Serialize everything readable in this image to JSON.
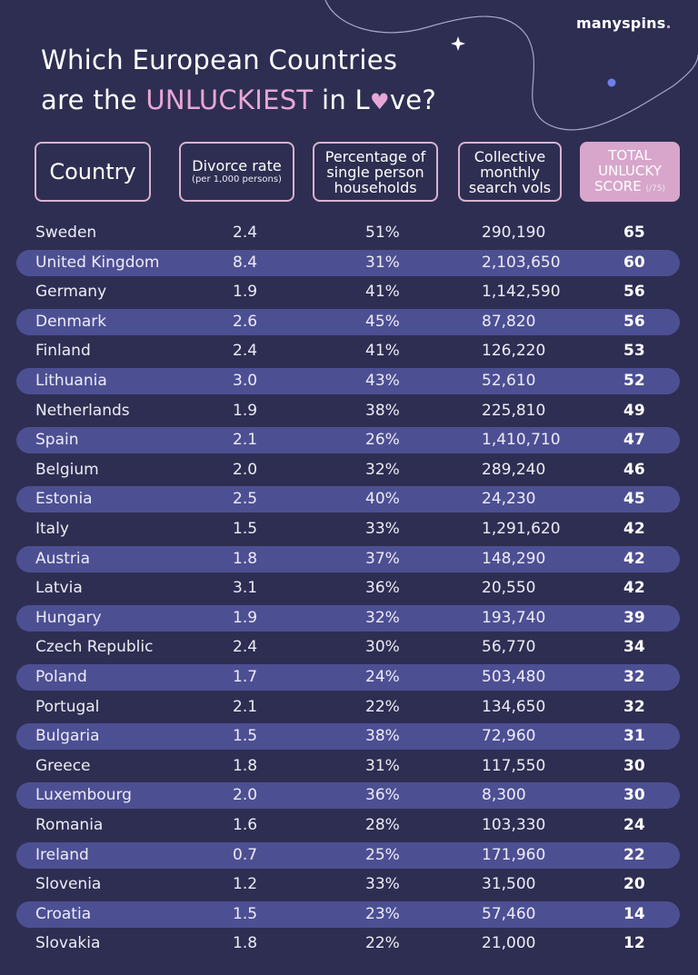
{
  "brand": {
    "name": "manyspins",
    "dot": "."
  },
  "title": {
    "line1": "Which European Countries",
    "line2_pre": "are the ",
    "line2_highlight": "UNLUCKIEST",
    "line2_mid": " in L",
    "heart": "♥",
    "line2_post": "ve?"
  },
  "headers": {
    "country": "Country",
    "divorce_main": "Divorce rate",
    "divorce_sub": "(per 1,000 persons)",
    "single_line1": "Percentage of",
    "single_line2": "single person",
    "single_line3": "households",
    "search_line1": "Collective",
    "search_line2": "monthly",
    "search_line3": "search vols",
    "total_line1": "TOTAL",
    "total_line2": "UNLUCKY",
    "total_line3": "SCORE",
    "total_sub": "(/75)"
  },
  "colors": {
    "background": "#2e2e52",
    "band": "#4d4f93",
    "accent_pink": "#d8a6cb",
    "deco_dot": "#6f7ee8"
  },
  "chart_data": {
    "type": "table",
    "columns": [
      "Country",
      "Divorce rate (per 1,000 persons)",
      "Percentage of single person households",
      "Collective monthly search vols",
      "TOTAL UNLUCKY SCORE (/75)"
    ],
    "rows": [
      {
        "country": "Sweden",
        "divorce_rate": "2.4",
        "single_pct": "51%",
        "search_vols": "290,190",
        "score": "65"
      },
      {
        "country": "United Kingdom",
        "divorce_rate": "8.4",
        "single_pct": "31%",
        "search_vols": "2,103,650",
        "score": "60"
      },
      {
        "country": "Germany",
        "divorce_rate": "1.9",
        "single_pct": "41%",
        "search_vols": "1,142,590",
        "score": "56"
      },
      {
        "country": "Denmark",
        "divorce_rate": "2.6",
        "single_pct": "45%",
        "search_vols": "87,820",
        "score": "56"
      },
      {
        "country": "Finland",
        "divorce_rate": "2.4",
        "single_pct": "41%",
        "search_vols": "126,220",
        "score": "53"
      },
      {
        "country": "Lithuania",
        "divorce_rate": "3.0",
        "single_pct": "43%",
        "search_vols": "52,610",
        "score": "52"
      },
      {
        "country": "Netherlands",
        "divorce_rate": "1.9",
        "single_pct": "38%",
        "search_vols": "225,810",
        "score": "49"
      },
      {
        "country": "Spain",
        "divorce_rate": "2.1",
        "single_pct": "26%",
        "search_vols": "1,410,710",
        "score": "47"
      },
      {
        "country": "Belgium",
        "divorce_rate": "2.0",
        "single_pct": "32%",
        "search_vols": "289,240",
        "score": "46"
      },
      {
        "country": "Estonia",
        "divorce_rate": "2.5",
        "single_pct": "40%",
        "search_vols": "24,230",
        "score": "45"
      },
      {
        "country": "Italy",
        "divorce_rate": "1.5",
        "single_pct": "33%",
        "search_vols": "1,291,620",
        "score": "42"
      },
      {
        "country": "Austria",
        "divorce_rate": "1.8",
        "single_pct": "37%",
        "search_vols": "148,290",
        "score": "42"
      },
      {
        "country": "Latvia",
        "divorce_rate": "3.1",
        "single_pct": "36%",
        "search_vols": "20,550",
        "score": "42"
      },
      {
        "country": "Hungary",
        "divorce_rate": "1.9",
        "single_pct": "32%",
        "search_vols": "193,740",
        "score": "39"
      },
      {
        "country": "Czech Republic",
        "divorce_rate": "2.4",
        "single_pct": "30%",
        "search_vols": "56,770",
        "score": "34"
      },
      {
        "country": "Poland",
        "divorce_rate": "1.7",
        "single_pct": "24%",
        "search_vols": "503,480",
        "score": "32"
      },
      {
        "country": "Portugal",
        "divorce_rate": "2.1",
        "single_pct": "22%",
        "search_vols": "134,650",
        "score": "32"
      },
      {
        "country": "Bulgaria",
        "divorce_rate": "1.5",
        "single_pct": "38%",
        "search_vols": "72,960",
        "score": "31"
      },
      {
        "country": "Greece",
        "divorce_rate": "1.8",
        "single_pct": "31%",
        "search_vols": "117,550",
        "score": "30"
      },
      {
        "country": "Luxembourg",
        "divorce_rate": "2.0",
        "single_pct": "36%",
        "search_vols": "8,300",
        "score": "30"
      },
      {
        "country": "Romania",
        "divorce_rate": "1.6",
        "single_pct": "28%",
        "search_vols": "103,330",
        "score": "24"
      },
      {
        "country": "Ireland",
        "divorce_rate": "0.7",
        "single_pct": "25%",
        "search_vols": "171,960",
        "score": "22"
      },
      {
        "country": "Slovenia",
        "divorce_rate": "1.2",
        "single_pct": "33%",
        "search_vols": "31,500",
        "score": "20"
      },
      {
        "country": "Croatia",
        "divorce_rate": "1.5",
        "single_pct": "23%",
        "search_vols": "57,460",
        "score": "14"
      },
      {
        "country": "Slovakia",
        "divorce_rate": "1.8",
        "single_pct": "22%",
        "search_vols": "21,000",
        "score": "12"
      }
    ]
  }
}
